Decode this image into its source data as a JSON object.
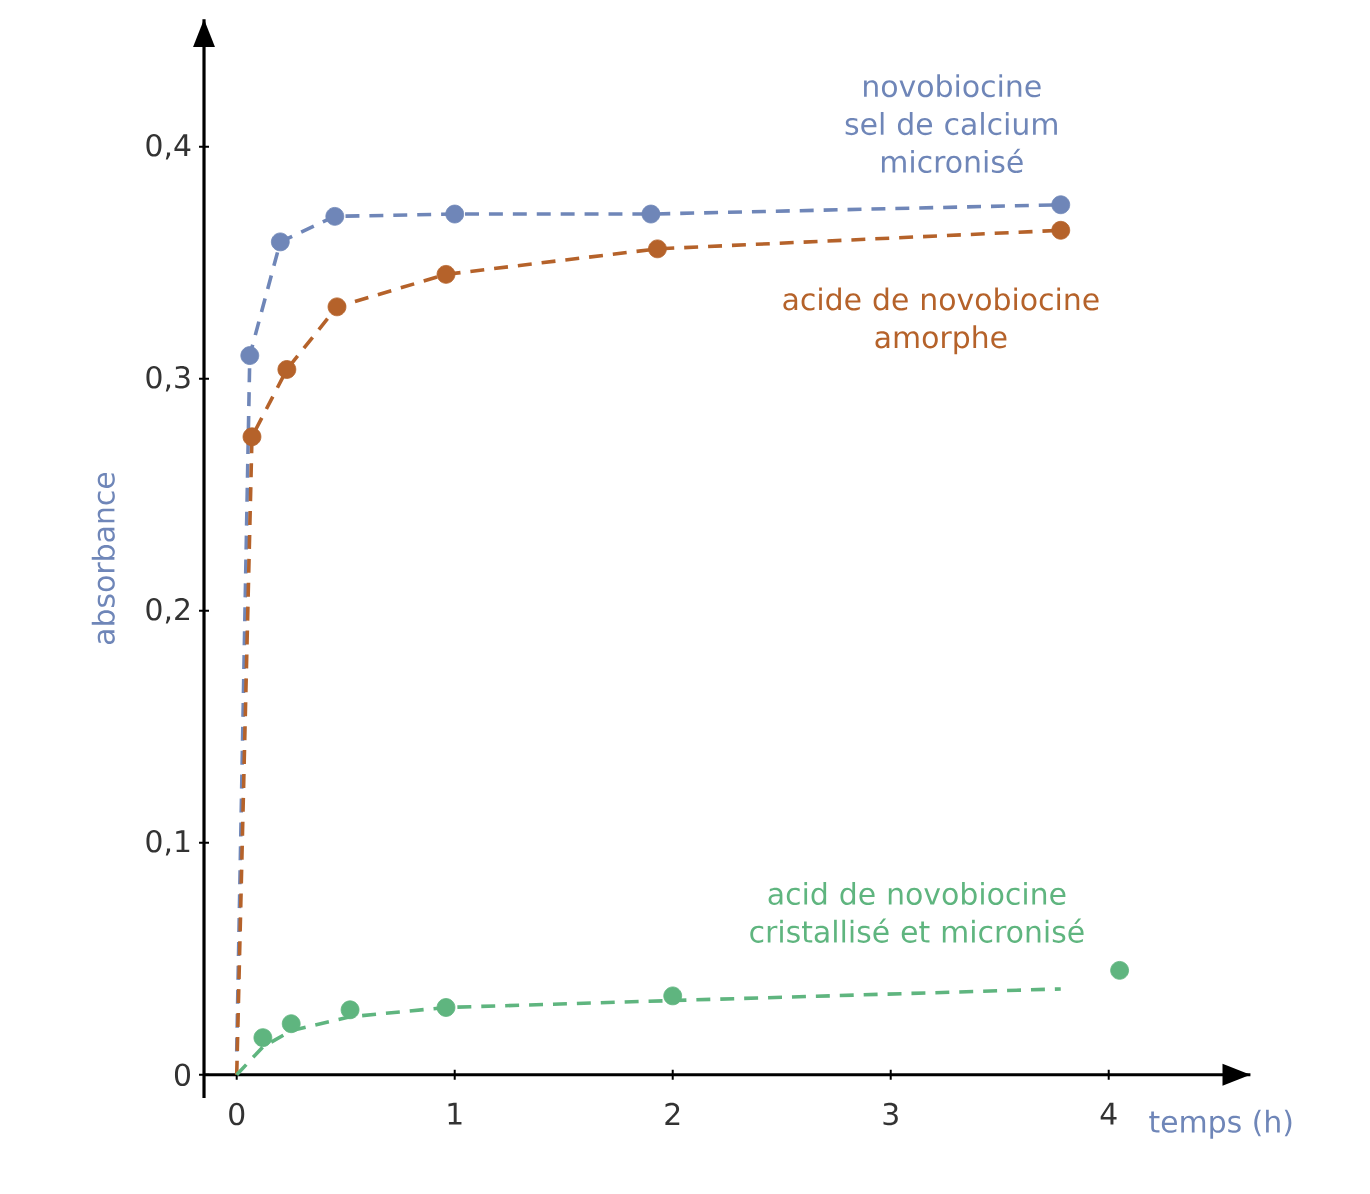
{
  "chart_data": {
    "type": "scatter",
    "xlabel": "temps (h)",
    "ylabel": "absorbance",
    "xlim": [
      -0.15,
      4.65
    ],
    "ylim": [
      -0.01,
      0.455
    ],
    "xticks": [
      0,
      1,
      2,
      3,
      4
    ],
    "yticks": [
      0,
      {
        "value": 0.1,
        "label": "0,1"
      },
      {
        "value": 0.2,
        "label": "0,2"
      },
      {
        "value": 0.3,
        "label": "0,3"
      },
      {
        "value": 0.4,
        "label": "0,4"
      }
    ],
    "marker": "circle",
    "grid": false,
    "series": [
      {
        "name": "novobiocine sel de calcium micronisé",
        "color": "#6f86b8",
        "x": [
          0.06,
          0.2,
          0.45,
          1.0,
          1.9,
          3.78
        ],
        "values": [
          0.31,
          0.359,
          0.37,
          0.371,
          0.371,
          0.375
        ]
      },
      {
        "name": "acide de novobiocine amorphe",
        "color": "#b5622a",
        "x": [
          0.07,
          0.23,
          0.46,
          0.96,
          1.93,
          3.78
        ],
        "values": [
          0.275,
          0.304,
          0.331,
          0.345,
          0.356,
          0.364
        ]
      },
      {
        "name": "acid de novobiocine cristallisé et micronisé",
        "color": "#5fb57f",
        "x": [
          0.12,
          0.25,
          0.52,
          0.96,
          2.0,
          4.05
        ],
        "values": [
          0.016,
          0.022,
          0.028,
          0.029,
          0.034,
          0.045
        ]
      },
      {
        "type": "line",
        "line_style": "dashed",
        "marker": "none",
        "color": "#6f86b8",
        "x": [
          0.0,
          0.06,
          0.2,
          0.45,
          1.0,
          1.9,
          3.78
        ],
        "values": [
          0.01,
          0.31,
          0.359,
          0.37,
          0.371,
          0.371,
          0.375
        ]
      },
      {
        "type": "line",
        "line_style": "dashed",
        "marker": "none",
        "color": "#b5622a",
        "x": [
          0.0,
          0.07,
          0.23,
          0.46,
          0.96,
          1.93,
          3.78
        ],
        "values": [
          0.0,
          0.275,
          0.304,
          0.331,
          0.345,
          0.356,
          0.364
        ]
      },
      {
        "type": "line",
        "line_style": "dashed",
        "marker": "none",
        "color": "#5fb57f",
        "x": [
          0.0,
          0.12,
          0.25,
          0.52,
          0.96,
          2.0,
          3.78
        ],
        "values": [
          0.0,
          0.012,
          0.019,
          0.025,
          0.029,
          0.032,
          0.037
        ]
      }
    ]
  }
}
